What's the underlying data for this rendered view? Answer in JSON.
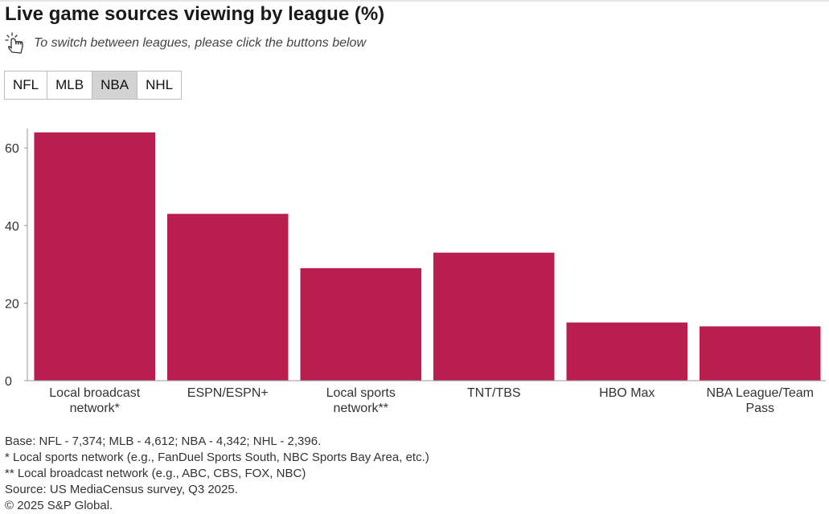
{
  "title": "Live game sources viewing by league (%)",
  "instruction": {
    "icon": "pointing-hand-icon",
    "text": "To switch between leagues, please click the buttons below"
  },
  "league_buttons": [
    {
      "label": "NFL",
      "active": false
    },
    {
      "label": "MLB",
      "active": false
    },
    {
      "label": "NBA",
      "active": true
    },
    {
      "label": "NHL",
      "active": false
    }
  ],
  "colors": {
    "bar": "#b91f4e",
    "axis": "#999999",
    "active_button": "#d3d3d3"
  },
  "chart_data": {
    "type": "bar",
    "title": "Live game sources viewing by league (%)",
    "categories": [
      [
        "Local broadcast",
        "network*"
      ],
      [
        "ESPN/ESPN+"
      ],
      [
        "Local sports",
        "network**"
      ],
      [
        "TNT/TBS"
      ],
      [
        "HBO Max"
      ],
      [
        "NBA League/Team",
        "Pass"
      ]
    ],
    "values": [
      64,
      43,
      29,
      33,
      15,
      14
    ],
    "ylim": [
      0,
      65
    ],
    "yticks": [
      0,
      20,
      40,
      60
    ],
    "xlabel": "",
    "ylabel": "",
    "grid": false
  },
  "notes": [
    "Base: NFL - 7,374; MLB - 4,612; NBA - 4,342; NHL - 2,396.",
    "* Local sports network (e.g., FanDuel Sports South, NBC Sports Bay Area, etc.)",
    "** Local broadcast network (e.g., ABC, CBS, FOX, NBC)",
    "Source: US MediaCensus survey, Q3 2025.",
    "© 2025 S&P Global."
  ]
}
